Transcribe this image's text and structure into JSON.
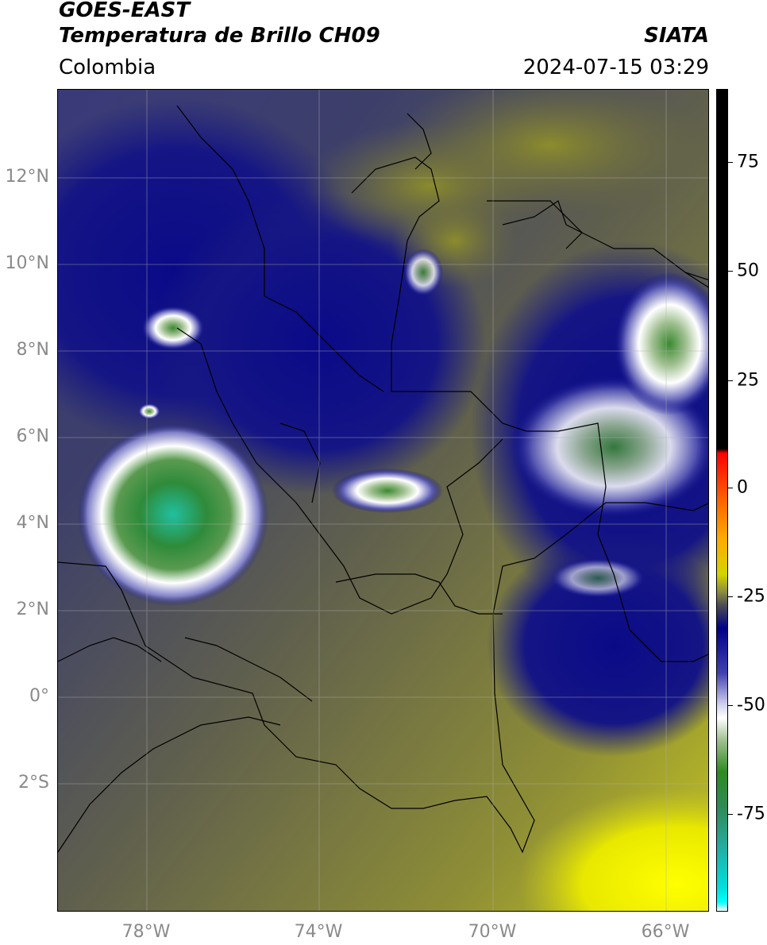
{
  "header": {
    "satellite": "GOES-EAST",
    "product": "Temperatura de Brillo CH09",
    "provider": "SIATA",
    "region": "Colombia",
    "timestamp": "2024-07-15 03:29"
  },
  "map": {
    "lat_ticks": [
      "12°N",
      "10°N",
      "8°N",
      "6°N",
      "4°N",
      "2°N",
      "0°",
      "2°S"
    ],
    "lon_ticks": [
      "78°W",
      "74°W",
      "70°W",
      "66°W"
    ],
    "grid": true
  },
  "colorbar": {
    "ticks": [
      "75",
      "50",
      "25",
      "0",
      "-25",
      "-50",
      "-75"
    ],
    "stops": [
      {
        "value": 90,
        "color": "#000000"
      },
      {
        "value": 10,
        "color": "#000000"
      },
      {
        "value": 9,
        "color": "#ff0000"
      },
      {
        "value": 0,
        "color": "#ff5500"
      },
      {
        "value": -10,
        "color": "#ffaa00"
      },
      {
        "value": -18,
        "color": "#d4d400"
      },
      {
        "value": -22,
        "color": "#8a8a40"
      },
      {
        "value": -25,
        "color": "#4a4a55"
      },
      {
        "value": -30,
        "color": "#000088"
      },
      {
        "value": -40,
        "color": "#4040b0"
      },
      {
        "value": -47,
        "color": "#d0d0ee"
      },
      {
        "value": -50,
        "color": "#ffffff"
      },
      {
        "value": -55,
        "color": "#a0c090"
      },
      {
        "value": -62,
        "color": "#2e8b20"
      },
      {
        "value": -70,
        "color": "#2e8b57"
      },
      {
        "value": -80,
        "color": "#20b2aa"
      },
      {
        "value": -88,
        "color": "#00e0e0"
      },
      {
        "value": -91,
        "color": "#00ffff"
      },
      {
        "value": -93,
        "color": "#ffffff"
      }
    ]
  }
}
